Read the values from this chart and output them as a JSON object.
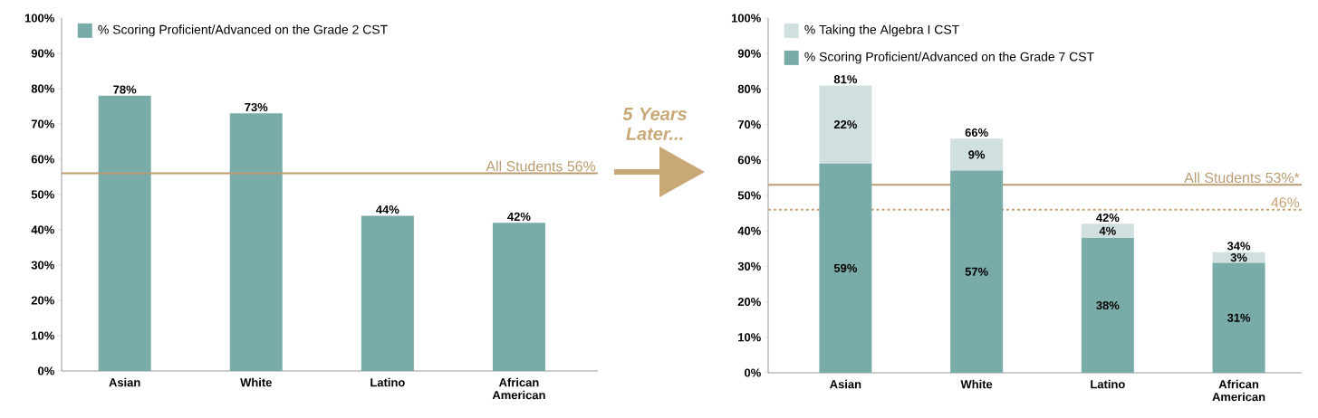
{
  "chart_data": [
    {
      "type": "bar",
      "categories": [
        "Asian",
        "White",
        "Latino",
        "African American"
      ],
      "series": [
        {
          "name": "% Scoring Proficient/Advanced on the Grade 2 CST",
          "color": "#79aba8",
          "values": [
            78,
            73,
            44,
            42
          ],
          "value_labels": [
            "78%",
            "73%",
            "44%",
            "42%"
          ]
        }
      ],
      "ylim": [
        0,
        100
      ],
      "yticks": [
        {
          "value": 0,
          "label": "0%"
        },
        {
          "value": 10,
          "label": "10%"
        },
        {
          "value": 20,
          "label": "20%"
        },
        {
          "value": 30,
          "label": "30%"
        },
        {
          "value": 40,
          "label": "40%"
        },
        {
          "value": 50,
          "label": "50%"
        },
        {
          "value": 60,
          "label": "60%"
        },
        {
          "value": 70,
          "label": "70%"
        },
        {
          "value": 80,
          "label": "80%"
        },
        {
          "value": 90,
          "label": "90%"
        },
        {
          "value": 100,
          "label": "100%"
        }
      ],
      "ref_lines": [
        {
          "axis": "y",
          "value": 56,
          "label": "All Students 56%",
          "color": "#bb9c72",
          "line_style": "solid"
        }
      ],
      "legend": "top left"
    },
    {
      "type": "bar",
      "stacked": true,
      "categories": [
        "Asian",
        "White",
        "Latino",
        "African American"
      ],
      "series": [
        {
          "name": "% Scoring Proficient/Advanced on the Grade 7 CST",
          "color": "#79aba8",
          "values": [
            59,
            57,
            38,
            31
          ],
          "value_labels": [
            "59%",
            "57%",
            "38%",
            "31%"
          ]
        },
        {
          "name": "% Taking the Algebra I CST",
          "color": "#cfe0df",
          "values": [
            22,
            9,
            4,
            3
          ],
          "value_labels": [
            "22%",
            "9%",
            "4%",
            "3%"
          ]
        }
      ],
      "totals": [
        "81%",
        "66%",
        "42%",
        "34%"
      ],
      "ylim": [
        0,
        100
      ],
      "yticks": [
        {
          "value": 0,
          "label": "0%"
        },
        {
          "value": 10,
          "label": "10%"
        },
        {
          "value": 20,
          "label": "20%"
        },
        {
          "value": 30,
          "label": "30%"
        },
        {
          "value": 40,
          "label": "40%"
        },
        {
          "value": 50,
          "label": "50%"
        },
        {
          "value": 60,
          "label": "60%"
        },
        {
          "value": 70,
          "label": "70%"
        },
        {
          "value": 80,
          "label": "80%"
        },
        {
          "value": 90,
          "label": "90%"
        },
        {
          "value": 100,
          "label": "100%"
        }
      ],
      "ref_lines": [
        {
          "axis": "y",
          "value": 53,
          "label": "All Students 53%*",
          "color": "#bb9c72",
          "line_style": "solid"
        },
        {
          "axis": "y",
          "value": 46,
          "label": "46%",
          "color": "#c9a276",
          "line_style": "dashed"
        }
      ],
      "annotations": [
        "5 Years Later..."
      ],
      "legend": "top left"
    }
  ]
}
